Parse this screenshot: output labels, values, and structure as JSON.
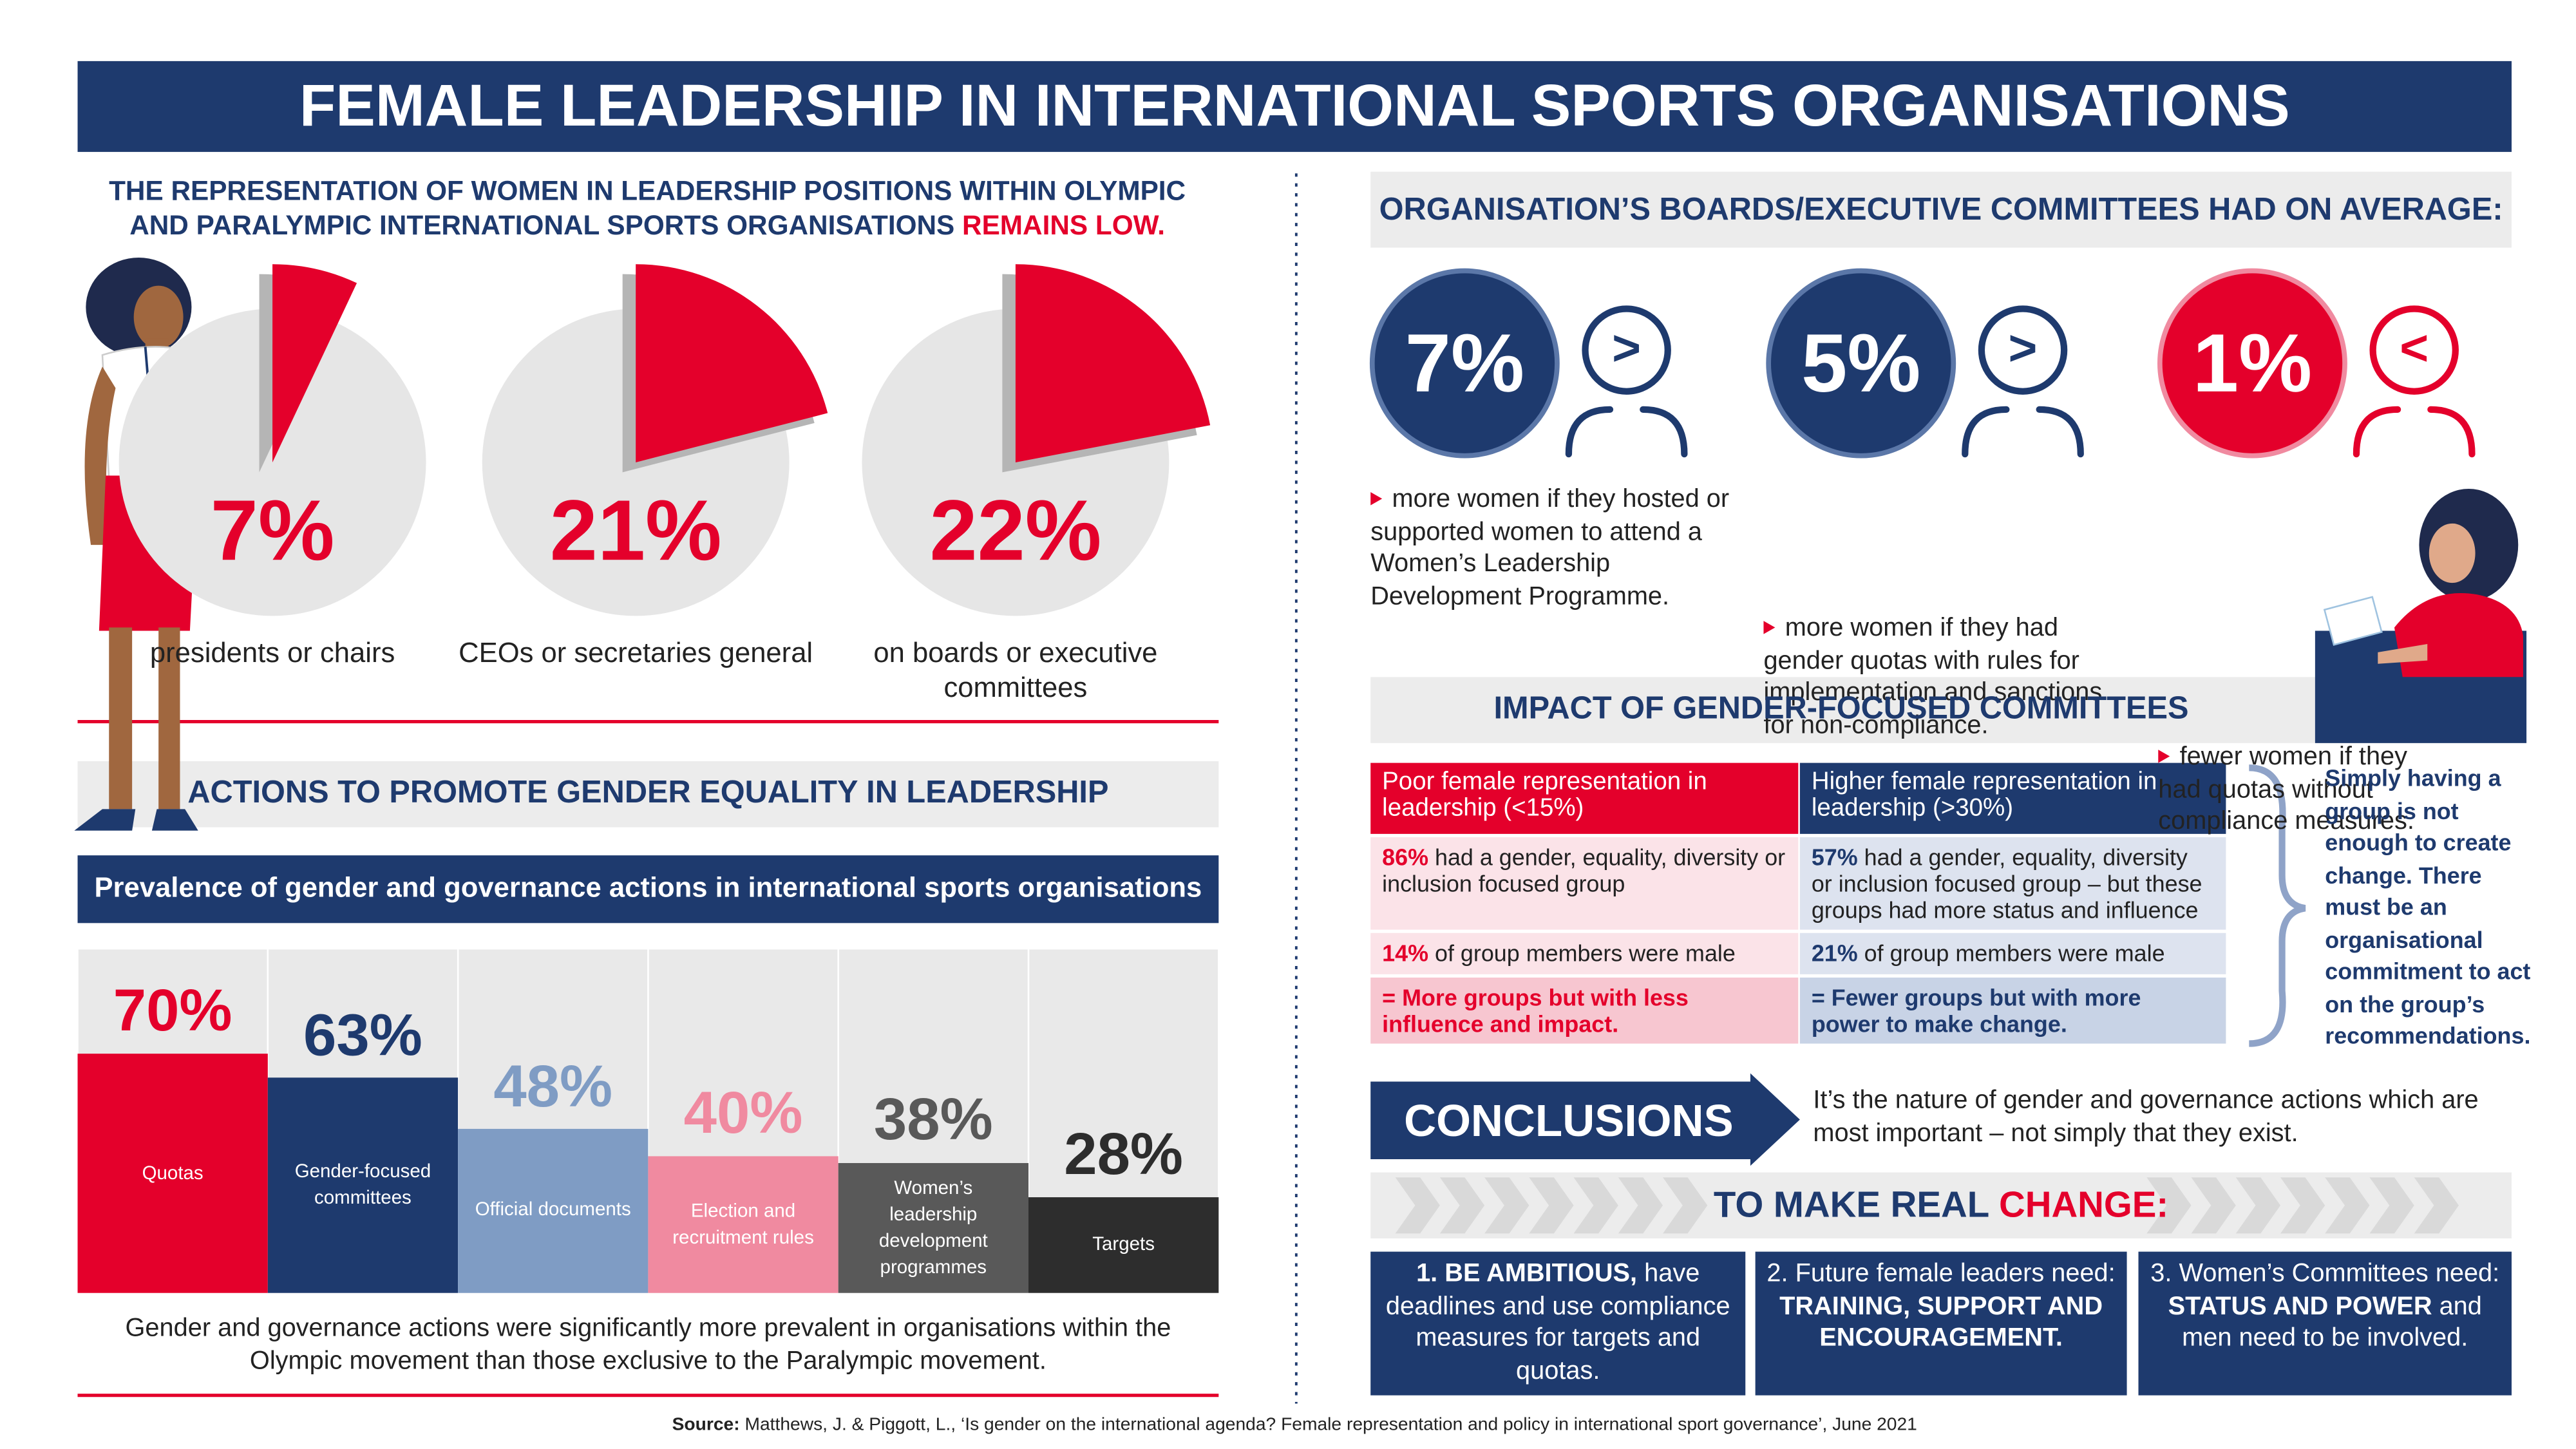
{
  "title": "FEMALE LEADERSHIP IN INTERNATIONAL SPORTS ORGANISATIONS",
  "intro": {
    "text": "THE REPRESENTATION OF WOMEN IN LEADERSHIP POSITIONS WITHIN OLYMPIC AND PARALYMPIC INTERNATIONAL SPORTS ORGANISATIONS",
    "highlight": "REMAINS LOW."
  },
  "chart_data": [
    {
      "type": "pie",
      "categories": [
        "presidents or chairs",
        "CEOs or secretaries general",
        "on boards or executive committees"
      ],
      "values": [
        7,
        21,
        22
      ],
      "value_labels": [
        "7%",
        "21%",
        "22%"
      ],
      "color": "#e4002b"
    },
    {
      "type": "bar",
      "title": "Prevalence of gender and governance actions in international sports organisations",
      "categories": [
        "Quotas",
        "Gender-focused committees",
        "Official documents",
        "Election and recruitment rules",
        "Women’s leadership development programmes",
        "Targets"
      ],
      "values": [
        70,
        63,
        48,
        40,
        38,
        28
      ],
      "value_labels": [
        "70%",
        "63%",
        "48%",
        "40%",
        "38%",
        "28%"
      ],
      "colors": [
        "#e4002b",
        "#1e3a6e",
        "#7f9cc4",
        "#f08aa0",
        "#595959",
        "#2d2d2d"
      ]
    }
  ],
  "actions_heading": "ACTIONS TO PROMOTE GENDER EQUALITY IN LEADERSHIP",
  "bar_note": "Gender and governance actions were significantly more prevalent in organisations within the Olympic movement than those exclusive to the Paralympic movement.",
  "boards": {
    "heading": "ORGANISATION’S BOARDS/EXECUTIVE COMMITTEES HAD ON AVERAGE:",
    "items": [
      {
        "stat": "7%",
        "symbol": ">",
        "text": "more women if they hosted or supported women to attend a Women’s Leadership Development Programme."
      },
      {
        "stat": "5%",
        "symbol": ">",
        "text": "more women if they had gender quotas with rules for implementation and sanctions for non-compliance."
      },
      {
        "stat": "1%",
        "symbol": "<",
        "text": "fewer women if they had quotas without compliance measures."
      }
    ]
  },
  "impact": {
    "heading": "IMPACT OF GENDER-FOCUSED COMMITTEES",
    "columns": [
      "Poor female representation in leadership (<15%)",
      "Higher female representation in leadership (>30%)"
    ],
    "rows": [
      [
        {
          "stat": "86%",
          "text": "had a gender, equality, diversity or inclusion focused group"
        },
        {
          "stat": "57%",
          "text": "had a gender, equality, diversity or inclusion focused group – but these groups had more status and influence"
        }
      ],
      [
        {
          "stat": "14%",
          "text": "of group members were male"
        },
        {
          "stat": "21%",
          "text": "of group members were male"
        }
      ]
    ],
    "summary": [
      "= More groups but with less influence and impact.",
      "= Fewer groups but with more power to make change."
    ],
    "note": "Simply having a group is not enough to create change. There must be an organisational commitment to act on the group’s recommendations."
  },
  "conclusions": {
    "label": "CONCLUSIONS",
    "text": "It’s the nature of gender and governance actions which are most important – not simply that they exist."
  },
  "real_change": {
    "heading": "TO MAKE REAL",
    "highlight": "CHANGE:",
    "steps": [
      [
        {
          "text": "1. BE AMBITIOUS,",
          "bold": true
        },
        {
          "text": "have deadlines and use compliance measures for targets and quotas.",
          "bold": false
        }
      ],
      [
        {
          "text": "2. Future female leaders need:",
          "bold": false
        },
        {
          "text": "TRAINING, SUPPORT AND ENCOURAGEMENT.",
          "bold": true
        }
      ],
      [
        {
          "text": "3. Women’s Committees need:",
          "bold": false
        },
        {
          "text": "STATUS AND POWER",
          "bold": true
        },
        {
          "text": "and men need to be involved.",
          "bold": false
        }
      ]
    ]
  },
  "source": {
    "label": "Source:",
    "text": "Matthews, J. & Piggott, L., ‘Is gender on the international agenda? Female representation and policy in international sport governance’, June 2021"
  }
}
